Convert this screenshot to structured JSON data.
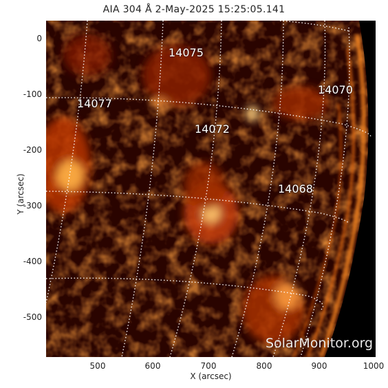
{
  "title": "AIA 304 Å  2-May-2025 15:25:05.141",
  "y_axis_label": "Y (arcsec)",
  "x_axis_label": "X (arcsec)",
  "y_ticks": [
    "0",
    "-100",
    "-200",
    "-300",
    "-400",
    "-500"
  ],
  "x_ticks": [
    "500",
    "600",
    "700",
    "800",
    "900",
    "1000"
  ],
  "active_regions": [
    "14075",
    "14077",
    "14072",
    "14070",
    "14068"
  ],
  "watermark": "SolarMonitor.org",
  "colors": {
    "background": "#000000",
    "disk_dark": "#3a0600",
    "disk_bright": "#ff9a2a",
    "grid": "#ffffff"
  }
}
